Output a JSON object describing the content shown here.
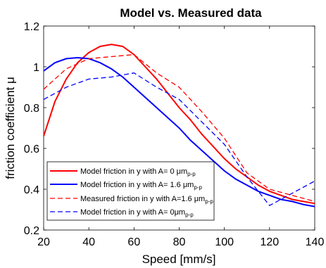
{
  "chart_data": {
    "type": "line",
    "title": "Model vs. Measured data",
    "xlabel": "Speed [mm/s]",
    "ylabel": "friction coefficient μ",
    "xlim": [
      20,
      140
    ],
    "ylim": [
      0.2,
      1.2
    ],
    "xticks": [
      "20",
      "40",
      "60",
      "80",
      "100",
      "120",
      "140"
    ],
    "yticks": [
      "0.2",
      "0.4",
      "0.6",
      "0.8",
      "1",
      "1.2"
    ],
    "grid": false,
    "legend_position": "bottom-left",
    "series": [
      {
        "name": "Model friction in y with A= 0 μm",
        "name_sub": "p-p",
        "color": "#ff0000",
        "style": "solid",
        "x": [
          20,
          25,
          30,
          35,
          40,
          45,
          50,
          55,
          60,
          65,
          70,
          75,
          80,
          85,
          90,
          95,
          100,
          105,
          110,
          115,
          120,
          125,
          130,
          135,
          140
        ],
        "y": [
          0.66,
          0.83,
          0.94,
          1.02,
          1.07,
          1.1,
          1.11,
          1.1,
          1.06,
          1.0,
          0.94,
          0.87,
          0.8,
          0.74,
          0.67,
          0.61,
          0.55,
          0.5,
          0.46,
          0.42,
          0.39,
          0.37,
          0.35,
          0.34,
          0.33
        ]
      },
      {
        "name": "Model friction in y with A= 1.6 μm",
        "name_sub": "p-p",
        "color": "#0000ff",
        "style": "solid",
        "x": [
          20,
          25,
          30,
          35,
          40,
          45,
          50,
          55,
          60,
          65,
          70,
          75,
          80,
          85,
          90,
          95,
          100,
          105,
          110,
          115,
          120,
          125,
          130,
          135,
          140
        ],
        "y": [
          0.98,
          1.02,
          1.04,
          1.045,
          1.04,
          1.02,
          0.99,
          0.95,
          0.9,
          0.85,
          0.8,
          0.75,
          0.7,
          0.64,
          0.59,
          0.54,
          0.49,
          0.45,
          0.42,
          0.39,
          0.37,
          0.35,
          0.34,
          0.325,
          0.315
        ]
      },
      {
        "name": "Measured friction in y with A=1.6 μm",
        "name_sub": "p-p",
        "color": "#ff0000",
        "style": "dashed",
        "x": [
          20,
          30,
          40,
          50,
          60,
          70,
          80,
          90,
          100,
          110,
          120,
          130,
          140
        ],
        "y": [
          0.89,
          0.99,
          1.04,
          1.05,
          1.06,
          0.97,
          0.9,
          0.78,
          0.65,
          0.48,
          0.4,
          0.37,
          0.34
        ]
      },
      {
        "name": "Model friction in y with A= 0μm",
        "name_sub": "p-p",
        "color": "#0000ff",
        "style": "dashed",
        "x": [
          20,
          30,
          40,
          50,
          60,
          70,
          80,
          90,
          100,
          110,
          120,
          130,
          140
        ],
        "y": [
          0.84,
          0.9,
          0.94,
          0.95,
          0.97,
          0.9,
          0.84,
          0.73,
          0.62,
          0.46,
          0.32,
          0.38,
          0.44
        ]
      }
    ]
  }
}
